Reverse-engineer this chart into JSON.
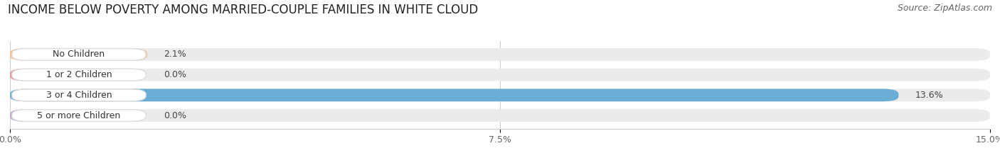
{
  "title": "INCOME BELOW POVERTY AMONG MARRIED-COUPLE FAMILIES IN WHITE CLOUD",
  "source": "Source: ZipAtlas.com",
  "categories": [
    "No Children",
    "1 or 2 Children",
    "3 or 4 Children",
    "5 or more Children"
  ],
  "values": [
    2.1,
    0.0,
    13.6,
    0.0
  ],
  "bar_colors": [
    "#f5c18e",
    "#e8959a",
    "#6aaed6",
    "#c5a8d4"
  ],
  "bar_bg_color": "#ebebeb",
  "xlim": [
    0,
    15.0
  ],
  "xticks": [
    0.0,
    7.5,
    15.0
  ],
  "xticklabels": [
    "0.0%",
    "7.5%",
    "15.0%"
  ],
  "title_fontsize": 12,
  "source_fontsize": 9,
  "bar_height": 0.62,
  "background_color": "#ffffff",
  "value_fontsize": 9,
  "category_fontsize": 9
}
